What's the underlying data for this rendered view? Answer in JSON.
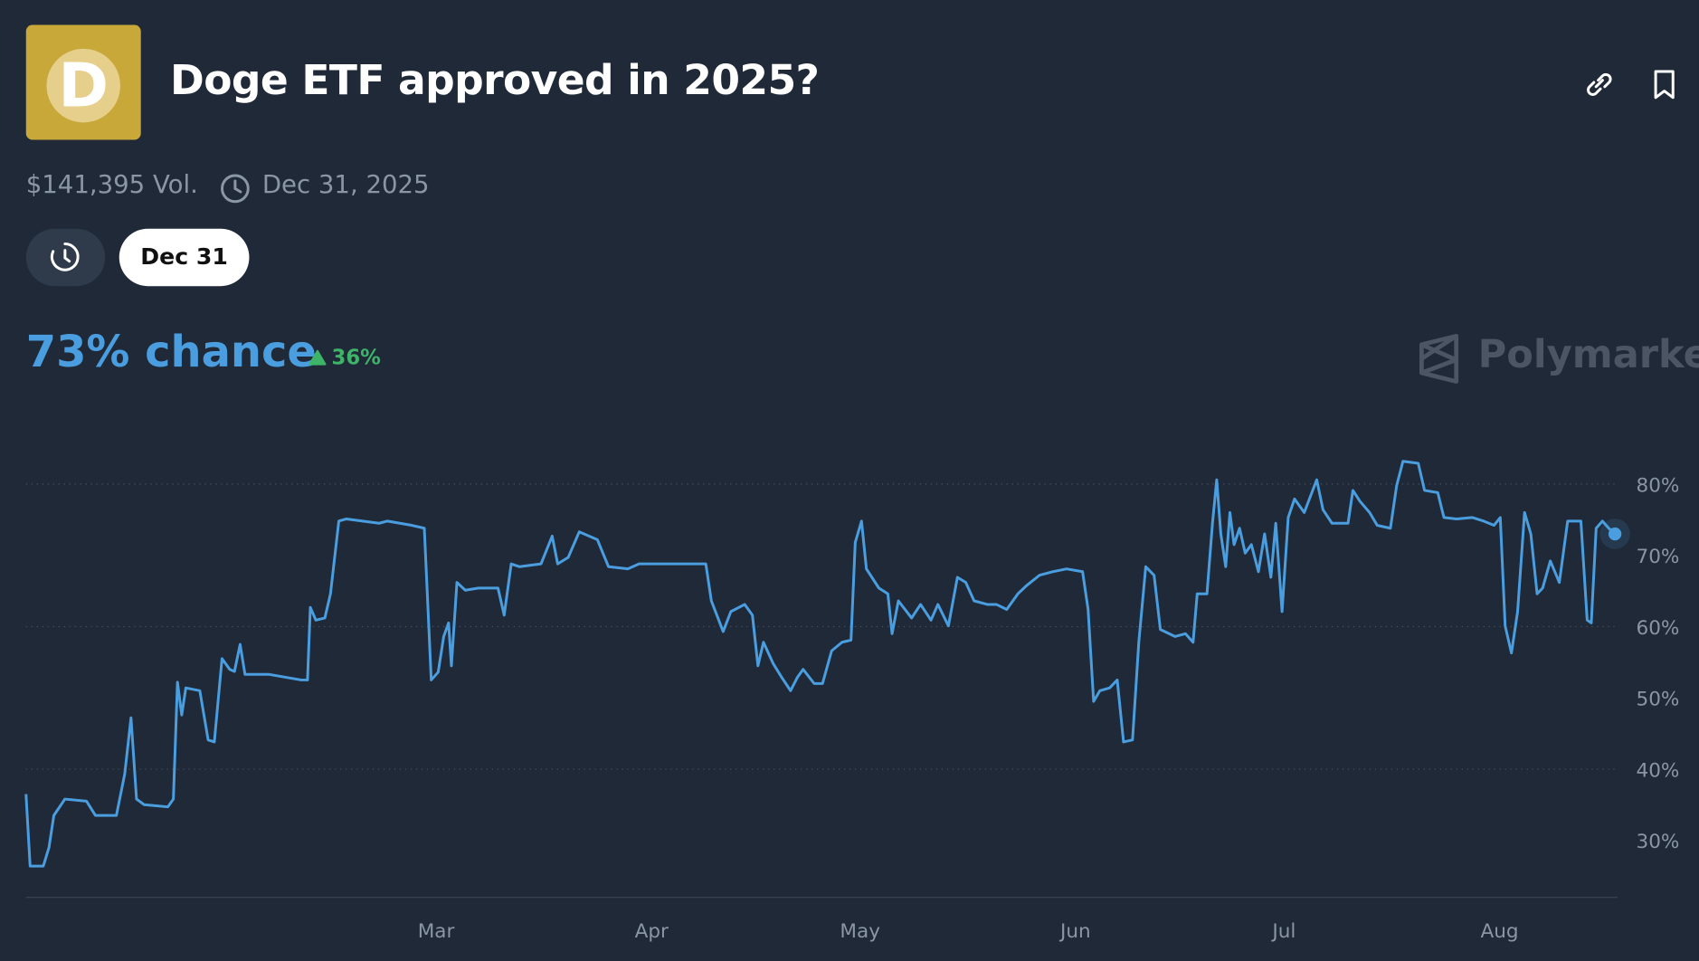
{
  "header": {
    "title": "Doge ETF approved in 2025?",
    "volume": "$141,395 Vol.",
    "end_date": "Dec 31, 2025"
  },
  "tabs": {
    "selected": "Dec 31"
  },
  "summary": {
    "chance": "73% chance",
    "change": "36%"
  },
  "brand": "Polymarket",
  "chart_data": {
    "type": "line",
    "color": "#4a9ee0",
    "grid": true,
    "x": [
      0,
      0.6,
      2.5,
      3.3,
      4,
      5.6,
      8.7,
      10,
      13,
      14.2,
      15.1,
      15.9,
      17,
      20.4,
      21.2,
      21.8,
      22.4,
      23,
      25,
      26.2,
      27.1,
      28.2,
      29.3,
      30,
      30.8,
      31.5,
      34.9,
      39.6,
      40.5,
      40.9,
      41.7,
      43,
      43.8,
      45,
      46.1,
      50.8,
      52,
      55.5,
      57.3,
      58.3,
      59.3,
      60.1,
      60.8,
      61.2,
      62,
      63.2,
      65.1,
      67.9,
      68.8,
      69.8,
      71,
      74.1,
      75.7,
      76.5,
      78,
      79.6,
      82.2,
      83.8,
      86.6,
      88.2,
      97.8,
      98.6,
      100.3,
      101.4,
      103.4,
      104.5,
      105.3,
      106.1,
      107.5,
      108.7,
      110,
      111,
      111.8,
      113.4,
      114.6,
      115.9,
      117.4,
      118.7,
      119.3,
      120.2,
      120.9,
      122.7,
      124,
      124.6,
      125.5,
      127.4,
      128.7,
      130.2,
      131.2,
      132.7,
      134,
      135.2,
      136.4,
      138.3,
      139.6,
      141.1,
      142.7,
      143.9,
      145.8,
      147.7,
      149.7,
      152,
      152.8,
      153.6,
      154.5,
      155.9,
      157,
      157.9,
      159.2,
      160.1,
      161.1,
      162.3,
      163.2,
      165.3,
      166.8,
      167.9,
      168.5,
      169.9,
      170.7,
      171.3,
      171.9,
      172.6,
      173.2,
      173.8,
      174.6,
      175.4,
      176.3,
      177.3,
      178.2,
      179.1,
      179.8,
      180.7,
      181.6,
      182.5,
      183.9,
      185.7,
      186.6,
      187.9,
      190.2,
      190.9,
      191.9,
      193.3,
      194.4,
      196.3,
      197.2,
      198.1,
      200.3,
      201.2,
      203.1,
      204,
      205.8,
      208.1,
      209.7,
      211.2,
      212.1,
      212.8,
      213.7,
      214.6,
      215.6,
      216.5,
      217.4,
      218.2,
      219.3,
      220.6,
      221.8,
      223.7,
      224.6,
      225.2,
      225.9,
      226.8,
      227.7,
      228.6
    ],
    "values": [
      36.5,
      26.4,
      26.4,
      29,
      33.5,
      35.8,
      35.5,
      33.5,
      33.5,
      39.3,
      47.2,
      35.8,
      35,
      34.7,
      35.8,
      52.2,
      47.6,
      51.4,
      51,
      44.1,
      43.8,
      55.5,
      54,
      53.7,
      57.5,
      53.3,
      53.3,
      52.5,
      52.5,
      62.7,
      60.9,
      61.2,
      64.6,
      74.8,
      75.1,
      74.5,
      74.8,
      74.2,
      73.8,
      52.5,
      53.6,
      58.6,
      60.5,
      54.5,
      66.2,
      65.1,
      65.4,
      65.4,
      61.6,
      68.8,
      68.4,
      68.8,
      72.7,
      68.8,
      69.7,
      73.3,
      72.2,
      68.4,
      68.1,
      68.8,
      68.8,
      63.6,
      59.3,
      62.1,
      63.1,
      61.6,
      54.5,
      57.8,
      54.8,
      52.9,
      51,
      52.9,
      54,
      52,
      52,
      56.6,
      57.8,
      58.1,
      71.8,
      74.8,
      68.1,
      65.4,
      64.6,
      59,
      63.6,
      61.2,
      63.1,
      60.9,
      63.1,
      60.1,
      66.9,
      66.2,
      63.6,
      63.1,
      63.1,
      62.4,
      64.6,
      65.7,
      67.2,
      67.7,
      68.1,
      67.7,
      62.4,
      49.5,
      51,
      51.4,
      52.5,
      43.8,
      44.1,
      57.8,
      68.4,
      67.2,
      59.6,
      58.6,
      59,
      57.8,
      64.6,
      64.6,
      74.5,
      80.6,
      73,
      68.4,
      76,
      71.5,
      73.8,
      70.3,
      71.5,
      67.7,
      73,
      66.9,
      74.5,
      62.1,
      75.3,
      77.9,
      76,
      80.6,
      76.4,
      74.5,
      74.5,
      79.1,
      77.6,
      76,
      74.2,
      73.8,
      79.8,
      83.2,
      82.9,
      79.1,
      78.8,
      75.3,
      75.1,
      75.3,
      74.8,
      74.2,
      75.3,
      60.1,
      56.3,
      62.1,
      76,
      73,
      64.6,
      65.4,
      69.2,
      66.2,
      74.8,
      74.8,
      60.9,
      60.5,
      73.8,
      74.8,
      73.8,
      73
    ],
    "xlim": [
      0,
      229
    ],
    "xticks": [
      {
        "value": 59,
        "label": "Mar"
      },
      {
        "value": 90,
        "label": "Apr"
      },
      {
        "value": 120,
        "label": "May"
      },
      {
        "value": 151,
        "label": "Jun"
      },
      {
        "value": 181,
        "label": "Jul"
      },
      {
        "value": 212,
        "label": "Aug"
      }
    ],
    "ylim": [
      22,
      88
    ],
    "yticks": [
      {
        "value": 30,
        "label": "30%"
      },
      {
        "value": 40,
        "label": "40%"
      },
      {
        "value": 50,
        "label": "50%"
      },
      {
        "value": 60,
        "label": "60%"
      },
      {
        "value": 70,
        "label": "70%"
      },
      {
        "value": 80,
        "label": "80%"
      }
    ]
  }
}
